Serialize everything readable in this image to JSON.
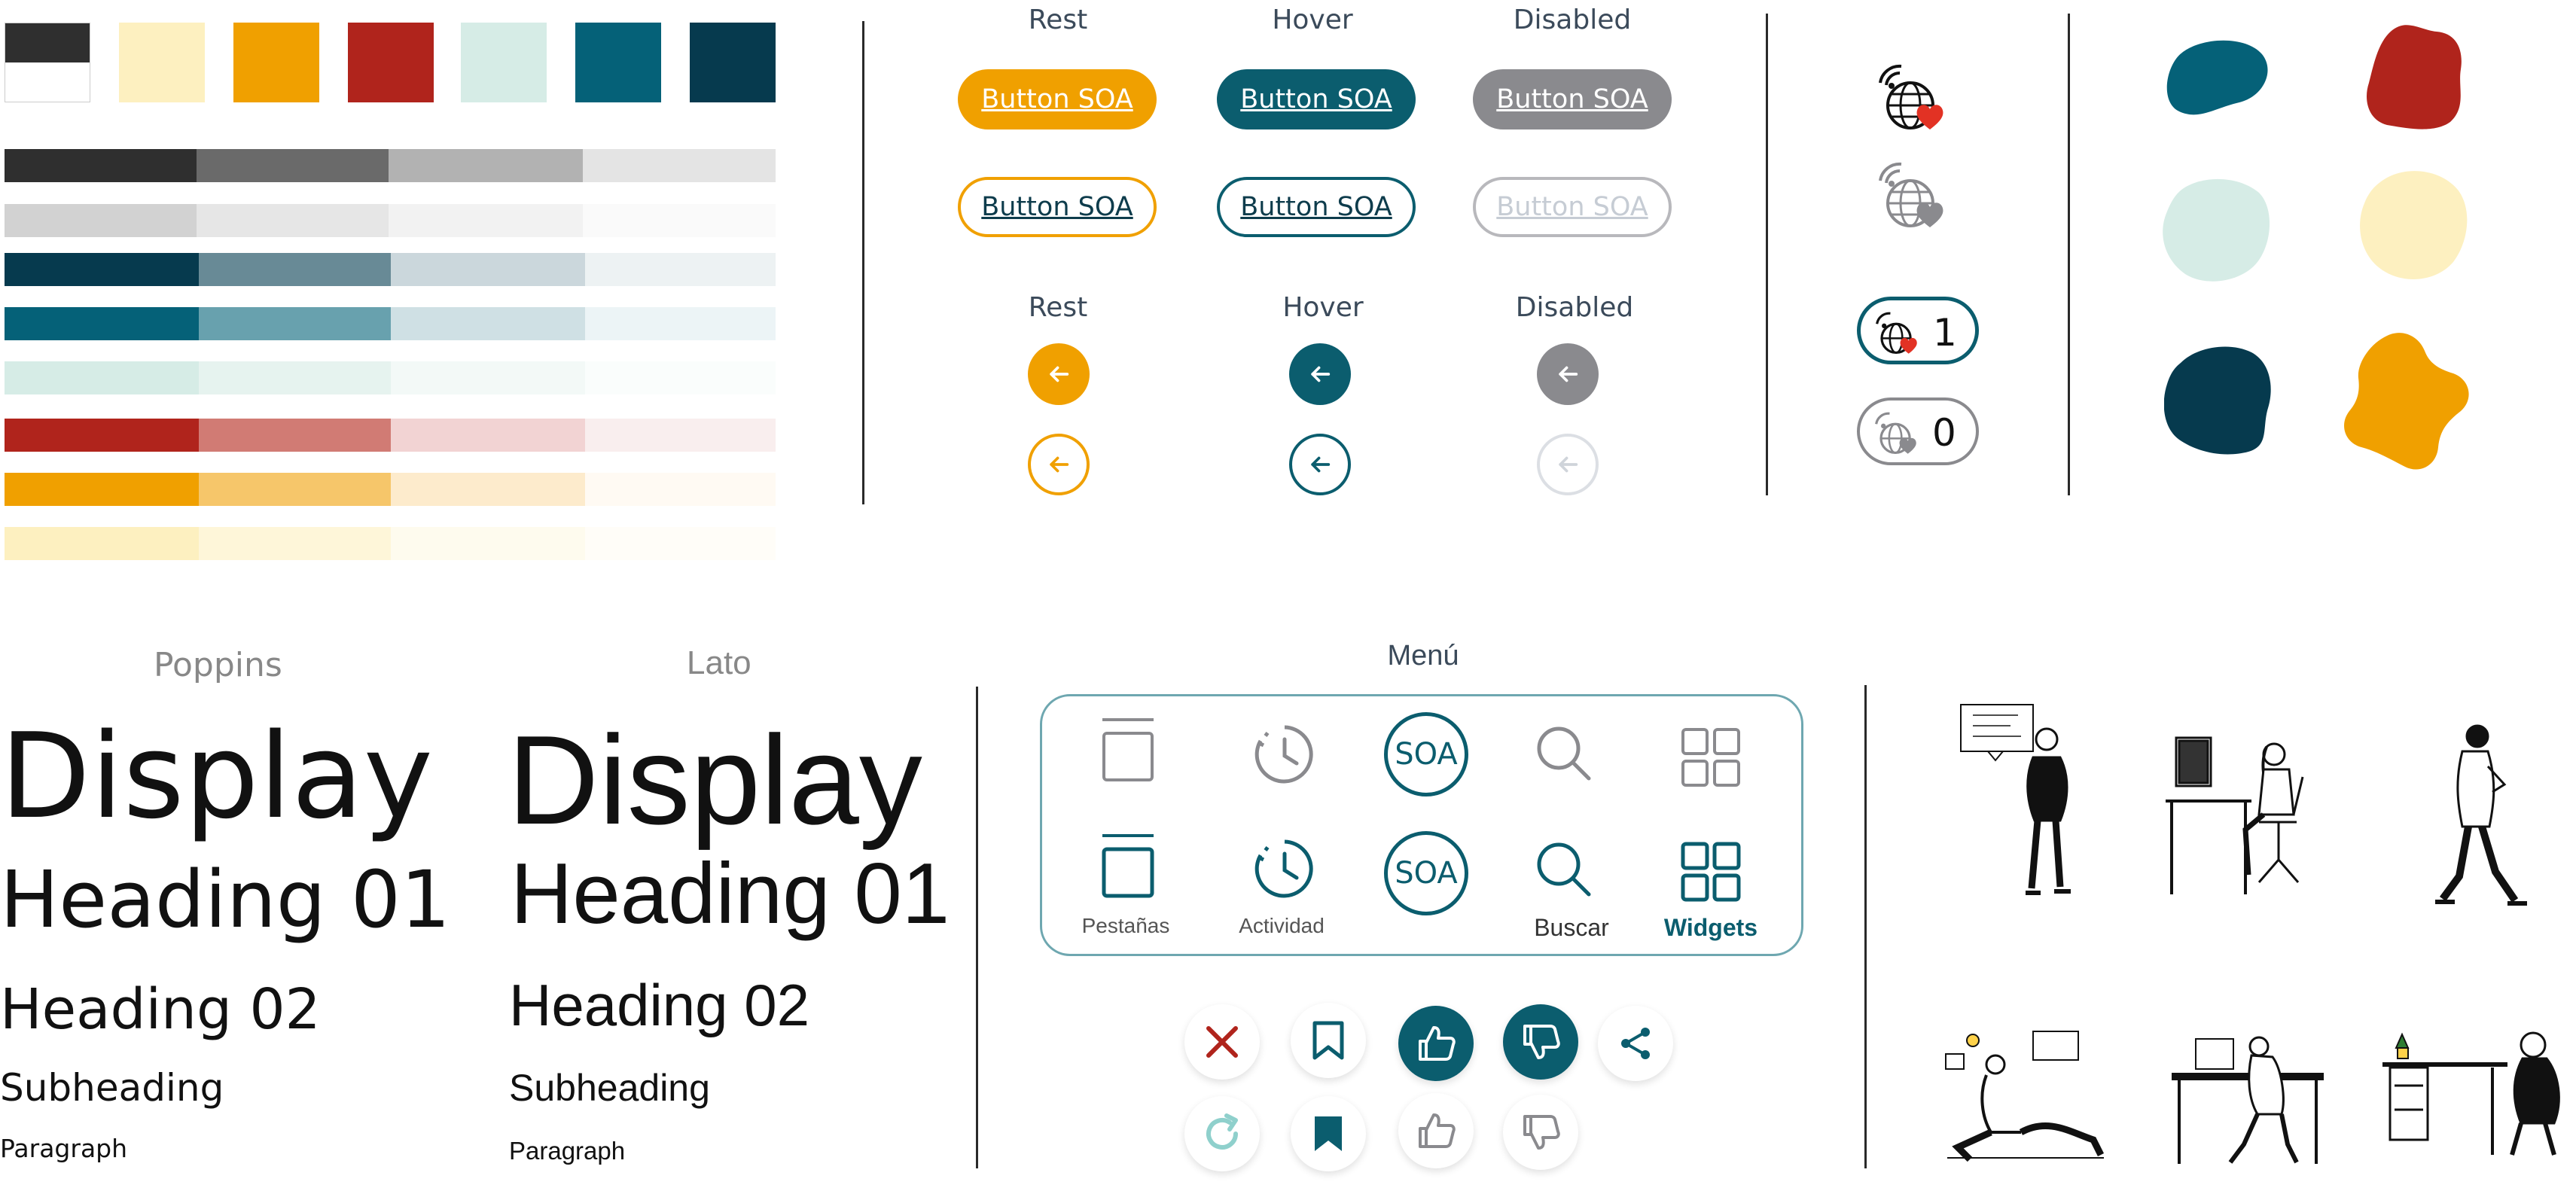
{
  "palette": {
    "swatches": [
      "#2f2f2f",
      "#fdf0c0",
      "#f0a000",
      "#b0241c",
      "#d6ece6",
      "#056178",
      "#063a4e"
    ],
    "tint_rows": [
      [
        "#2f2f2f",
        "#6a6a6a",
        "#b2b2b2",
        "#e4e4e4"
      ],
      [
        "#d2d2d2",
        "#e6e6e6",
        "#f2f2f2",
        "#fafafa"
      ],
      [
        "#063a4e",
        "#688a96",
        "#cbd7dc",
        "#edf2f3"
      ],
      [
        "#056178",
        "#68a1ae",
        "#cfe0e4",
        "#ecf4f6"
      ],
      [
        "#d6ece6",
        "#e6f3ef",
        "#f3f9f7",
        "#fafdfc"
      ],
      [
        "#b0241c",
        "#d17b74",
        "#f2d3d3",
        "#f9eeee"
      ],
      [
        "#f0a000",
        "#f6c66a",
        "#fdebcc",
        "#fffaf3"
      ],
      [
        "#fdf0c0",
        "#fef6d9",
        "#fefbee",
        "#fffdf8"
      ]
    ]
  },
  "buttons": {
    "state_labels": [
      "Rest",
      "Hover",
      "Disabled"
    ],
    "button_label": "Button SOA",
    "colors": {
      "orange": "#f0a000",
      "teal": "#0b5d6e",
      "gray": "#8a8a8e",
      "disabled_border": "#b8b8bc",
      "disabled_text": "#c6ccd4"
    }
  },
  "favorites": {
    "count_active": "1",
    "count_inactive": "0"
  },
  "blobs": [
    "#056178",
    "#b0241c",
    "#d6ece6",
    "#fdf0c0",
    "#063a4e",
    "#f0a000"
  ],
  "typography": {
    "font_names": [
      "Poppins",
      "Lato"
    ],
    "samples": {
      "display": "Display",
      "h1": "Heading 01",
      "h2": "Heading 02",
      "subheading": "Subheading",
      "paragraph": "Paragraph"
    }
  },
  "menu": {
    "title": "Menú",
    "labels": {
      "tabs": "Pestañas",
      "activity": "Actividad",
      "logo": "SOA",
      "search": "Buscar",
      "widgets": "Widgets"
    }
  },
  "icon_names": [
    "tabs-icon",
    "clock-icon",
    "soa-logo-icon",
    "search-icon",
    "widgets-icon",
    "close-icon",
    "bookmark-icon",
    "thumbs-up-icon",
    "thumbs-down-icon",
    "share-icon",
    "refresh-icon"
  ]
}
